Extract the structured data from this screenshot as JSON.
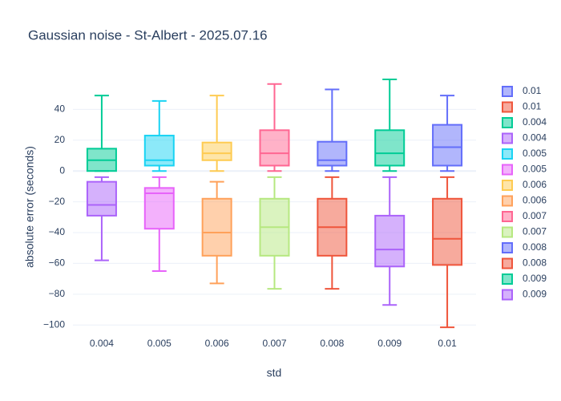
{
  "chart_data": {
    "type": "box",
    "title": "Gaussian noise - St-Albert - 2025.07.16",
    "x_label": "std",
    "y_label": "absolute error (seconds)",
    "categories": [
      "0.004",
      "0.005",
      "0.006",
      "0.007",
      "0.008",
      "0.009",
      "0.01"
    ],
    "ylim": [
      -103,
      60
    ],
    "yticks": [
      {
        "value": -100,
        "label": "−100"
      },
      {
        "value": -80,
        "label": "−80"
      },
      {
        "value": -60,
        "label": "−60"
      },
      {
        "value": -40,
        "label": "−40"
      },
      {
        "value": -20,
        "label": "−20"
      },
      0,
      20,
      40
    ],
    "grid": true,
    "legend": "right",
    "series": [
      {
        "name": "0.01",
        "color": "#636efa",
        "x": "0.01",
        "min": 0,
        "q1": 3.5,
        "median": 15.5,
        "q3": 30,
        "max": 49
      },
      {
        "name": "0.01",
        "color": "#EF553B",
        "x": "0.01",
        "min": -101.5,
        "q1": -61,
        "median": -44,
        "q3": -18,
        "max": -4
      },
      {
        "name": "0.004",
        "color": "#00cc96",
        "x": "0.004",
        "min": 0,
        "q1": 0,
        "median": 7,
        "q3": 14.5,
        "max": 49
      },
      {
        "name": "0.004",
        "color": "#ab63fa",
        "x": "0.004",
        "min": -58,
        "q1": -29,
        "median": -22,
        "q3": -7,
        "max": -4
      },
      {
        "name": "0.005",
        "color": "#19d3f3",
        "x": "0.005",
        "min": 0,
        "q1": 3.5,
        "median": 7,
        "q3": 23,
        "max": 45.5
      },
      {
        "name": "0.005",
        "color": "#e763fa",
        "x": "0.005",
        "min": -65,
        "q1": -37.5,
        "median": -14.5,
        "q3": -11,
        "max": -4
      },
      {
        "name": "0.006",
        "color": "#FECB52",
        "x": "0.006",
        "min": 0,
        "q1": 7,
        "median": 11.5,
        "q3": 18.5,
        "max": 49
      },
      {
        "name": "0.006",
        "color": "#FFA15A",
        "x": "0.006",
        "min": -73,
        "q1": -55,
        "median": -40,
        "q3": -18,
        "max": -7
      },
      {
        "name": "0.007",
        "color": "#FF6692",
        "x": "0.007",
        "min": 0,
        "q1": 3.5,
        "median": 11.5,
        "q3": 26.5,
        "max": 56.5
      },
      {
        "name": "0.007",
        "color": "#B6E880",
        "x": "0.007",
        "min": -76.5,
        "q1": -55,
        "median": -36.5,
        "q3": -18,
        "max": -4
      },
      {
        "name": "0.008",
        "color": "#636efa",
        "x": "0.008",
        "min": 0,
        "q1": 3.5,
        "median": 7,
        "q3": 19,
        "max": 53
      },
      {
        "name": "0.008",
        "color": "#EF553B",
        "x": "0.008",
        "min": -76.5,
        "q1": -55,
        "median": -36.5,
        "q3": -18,
        "max": -4
      },
      {
        "name": "0.009",
        "color": "#00cc96",
        "x": "0.009",
        "min": 0,
        "q1": 3.5,
        "median": 11.5,
        "q3": 26.5,
        "max": 59.5
      },
      {
        "name": "0.009",
        "color": "#ab63fa",
        "x": "0.009",
        "min": -87,
        "q1": -62,
        "median": -51,
        "q3": -29,
        "max": -4
      }
    ]
  }
}
